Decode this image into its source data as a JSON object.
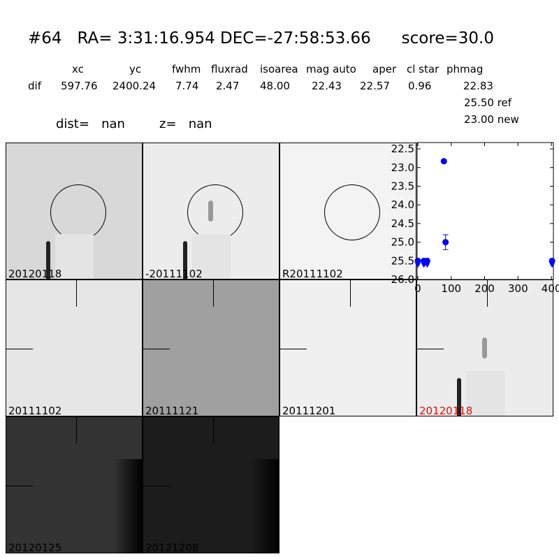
{
  "title": {
    "id": "#64",
    "ra": "RA= 3:31:16.954",
    "dec": "DEC=-27:58:53.66",
    "score": "score=30.0"
  },
  "table": {
    "headers": [
      "xc",
      "yc",
      "fwhm",
      "fluxrad",
      "isoarea",
      "mag auto",
      "aper",
      "cl star",
      "phmag"
    ],
    "row_label": "dif",
    "values": [
      "597.76",
      "2400.24",
      "7.74",
      "2.47",
      "48.00",
      "22.43",
      "22.57",
      "0.96",
      "22.83"
    ],
    "ref": "25.50 ref",
    "new": "23.00 new"
  },
  "dist": "dist=   nan",
  "z": "z=   nan",
  "panels": [
    {
      "label": "20120118",
      "bg": "#d8d8d8"
    },
    {
      "label": "-20111102",
      "bg": "#ececec"
    },
    {
      "label": "R20111102",
      "bg": "#f3f3f3"
    },
    {
      "label": "20111102",
      "bg": "#e6e6e6"
    },
    {
      "label": "20111121",
      "bg": "#a0a0a0"
    },
    {
      "label": "20111201",
      "bg": "#f0f0f0"
    },
    {
      "label": "20120118",
      "bg": "#ececec",
      "color": "#ff0000"
    },
    {
      "label": "20120125",
      "bg": "#333333"
    },
    {
      "label": "20121208",
      "bg": "#1c1c1c"
    }
  ],
  "chart_data": {
    "type": "scatter",
    "xlim": [
      -2,
      406
    ],
    "ylim": [
      26.0,
      22.33
    ],
    "y_inverted": true,
    "xticks": [
      "0",
      "100",
      "200",
      "300",
      "400"
    ],
    "yticks": [
      "22.5",
      "23.0",
      "23.5",
      "24.0",
      "24.5",
      "25.0",
      "25.5",
      "26.0"
    ],
    "color": "#0000ff",
    "points": [
      {
        "x": 0,
        "y": 25.5,
        "limit": true
      },
      {
        "x": 18,
        "y": 25.5,
        "limit": true
      },
      {
        "x": 28,
        "y": 25.5,
        "limit": true
      },
      {
        "x": 78,
        "y": 22.83
      },
      {
        "x": 83,
        "y": 25.0,
        "err": 0.2
      },
      {
        "x": 402,
        "y": 25.5,
        "limit": true
      }
    ]
  }
}
